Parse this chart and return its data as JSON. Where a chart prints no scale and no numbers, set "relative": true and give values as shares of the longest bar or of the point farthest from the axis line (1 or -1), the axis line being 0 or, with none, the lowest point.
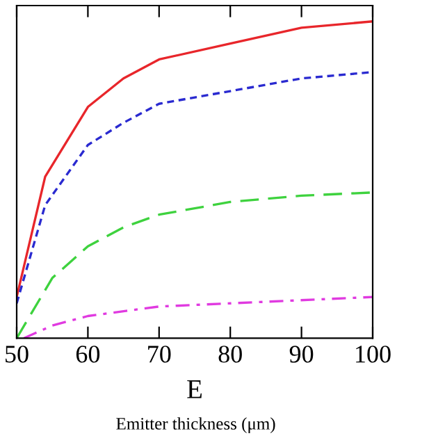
{
  "chart_data": {
    "type": "line",
    "xlabel": "E",
    "annotations": [
      "Emitter thickness (μm)"
    ],
    "relative": true,
    "xlim": [
      50,
      100
    ],
    "xticks": [
      50,
      60,
      70,
      80,
      90,
      100
    ],
    "grid": false,
    "series": [
      {
        "color": "#e8262b",
        "line_style": "solid",
        "x": [
          50,
          54,
          60,
          65,
          70,
          80,
          90,
          100
        ],
        "values": [
          0.13,
          0.51,
          0.73,
          0.82,
          0.88,
          0.93,
          0.98,
          1
        ]
      },
      {
        "color": "#2a2ad0",
        "line_style": "dashed",
        "x": [
          50,
          54,
          60,
          65,
          70,
          80,
          90,
          100
        ],
        "values": [
          0.11,
          0.42,
          0.61,
          0.68,
          0.74,
          0.78,
          0.82,
          0.84
        ]
      },
      {
        "color": "#3ed23e",
        "line_style": "longdash",
        "x": [
          50,
          55,
          60,
          65,
          70,
          80,
          90,
          100
        ],
        "values": [
          0,
          0.19,
          0.29,
          0.35,
          0.39,
          0.43,
          0.45,
          0.46
        ]
      },
      {
        "color": "#e03ae0",
        "line_style": "dashdot",
        "x": [
          51,
          55,
          60,
          70,
          80,
          100
        ],
        "values": [
          0,
          0.04,
          0.07,
          0.1,
          0.11,
          0.13
        ]
      }
    ]
  }
}
